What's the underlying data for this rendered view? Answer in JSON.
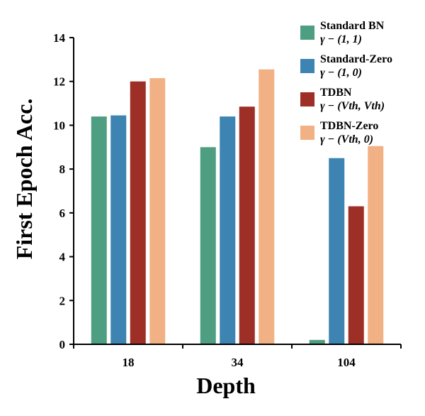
{
  "chart_data": {
    "type": "bar",
    "categories": [
      "18",
      "34",
      "104"
    ],
    "series": [
      {
        "name": "Standard BN",
        "formula": "γ − (1, 1)",
        "color": "#4e9e82",
        "values": [
          10.4,
          9.0,
          0.2
        ]
      },
      {
        "name": "Standard-Zero",
        "formula": "γ − (1, 0)",
        "color": "#3d84b2",
        "values": [
          10.45,
          10.4,
          8.5
        ]
      },
      {
        "name": "TDBN",
        "formula": "γ − (Vth, Vth)",
        "color": "#9d2f27",
        "values": [
          12.0,
          10.85,
          6.3
        ]
      },
      {
        "name": "TDBN-Zero",
        "formula": "γ − (Vth, 0)",
        "color": "#f2b184",
        "values": [
          12.15,
          12.55,
          9.05
        ]
      }
    ],
    "title": "",
    "xlabel": "Depth",
    "ylabel": "First Epoch Acc.",
    "ylim": [
      0,
      14
    ],
    "yticks": [
      0,
      2,
      4,
      6,
      8,
      10,
      12,
      14
    ],
    "legend_position": "top-right"
  }
}
